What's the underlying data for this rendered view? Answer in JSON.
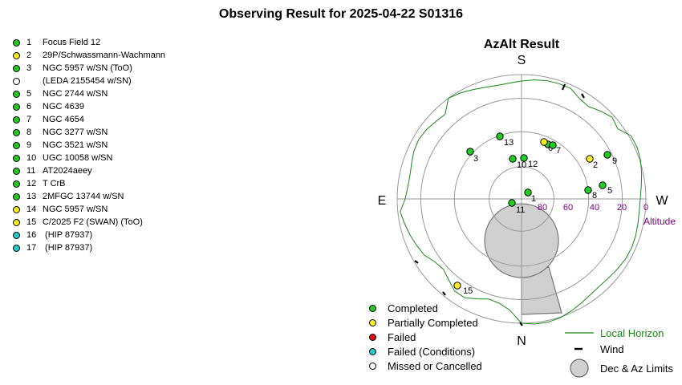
{
  "title": "Observing Result for 2025-04-22 S01316",
  "targets": [
    {
      "num": "1",
      "name": "Focus Field 12",
      "status": "completed"
    },
    {
      "num": "2",
      "name": "29P/Schwassmann-Wachmann",
      "status": "partial"
    },
    {
      "num": "3",
      "name": "NGC 5957 w/SN (ToO)",
      "status": "completed"
    },
    {
      "num": "",
      "name": "(LEDA 2155454 w/SN)",
      "status": "missed"
    },
    {
      "num": "5",
      "name": "NGC 2744 w/SN",
      "status": "completed"
    },
    {
      "num": "6",
      "name": "NGC 4639",
      "status": "completed"
    },
    {
      "num": "7",
      "name": "NGC 4654",
      "status": "completed"
    },
    {
      "num": "8",
      "name": "NGC 3277 w/SN",
      "status": "completed"
    },
    {
      "num": "9",
      "name": "NGC 3521 w/SN",
      "status": "completed"
    },
    {
      "num": "10",
      "name": "UGC 10058 w/SN",
      "status": "completed"
    },
    {
      "num": "11",
      "name": "AT2024aeey",
      "status": "completed"
    },
    {
      "num": "12",
      "name": "T CrB",
      "status": "completed"
    },
    {
      "num": "13",
      "name": "2MFGC 13744 w/SN",
      "status": "completed"
    },
    {
      "num": "14",
      "name": "NGC 5957 w/SN",
      "status": "partial"
    },
    {
      "num": "15",
      "name": "C/2025 F2 (SWAN) (ToO)",
      "status": "partial"
    },
    {
      "num": "16",
      "name": " (HIP 87937)",
      "status": "failed_conditions"
    },
    {
      "num": "17",
      "name": " (HIP 87937)",
      "status": "failed_conditions"
    }
  ],
  "azalt": {
    "title": "AzAlt Result",
    "directions": {
      "top": "S",
      "bottom": "N",
      "left": "E",
      "right": "W"
    },
    "altitude_label": "Altitude",
    "altitude_ticks": [
      "80",
      "60",
      "40",
      "20",
      "0"
    ],
    "status_colors": {
      "completed": "#22cc22",
      "partial": "#ffee22",
      "failed": "#dd1111",
      "failed_conditions": "#22cccc",
      "missed": "#ffffff"
    },
    "points": [
      {
        "label": "1",
        "status": "completed"
      },
      {
        "label": "2",
        "status": "partial"
      },
      {
        "label": "3",
        "status": "completed"
      },
      {
        "label": "5",
        "status": "completed"
      },
      {
        "label": "6",
        "status": "completed"
      },
      {
        "label": "7",
        "status": "completed"
      },
      {
        "label": "8",
        "status": "completed"
      },
      {
        "label": "9",
        "status": "completed"
      },
      {
        "label": "10",
        "status": "completed"
      },
      {
        "label": "11",
        "status": "completed"
      },
      {
        "label": "12",
        "status": "completed"
      },
      {
        "label": "13",
        "status": "completed"
      },
      {
        "label": "14",
        "status": "partial"
      },
      {
        "label": "15",
        "status": "partial"
      }
    ]
  },
  "legend_status": [
    {
      "label": "Completed",
      "status": "completed"
    },
    {
      "label": "Partially Completed",
      "status": "partial"
    },
    {
      "label": "Failed",
      "status": "failed"
    },
    {
      "label": "Failed (Conditions)",
      "status": "failed_conditions"
    },
    {
      "label": "Missed or Cancelled",
      "status": "missed"
    }
  ],
  "legend_symbols": {
    "horizon": "Local Horizon",
    "wind": "Wind",
    "limits": "Dec & Az Limits"
  },
  "colors": {
    "horizon": "#1a8a1a",
    "altitude_label": "#800080",
    "limits_fill": "#d0d0d0"
  }
}
